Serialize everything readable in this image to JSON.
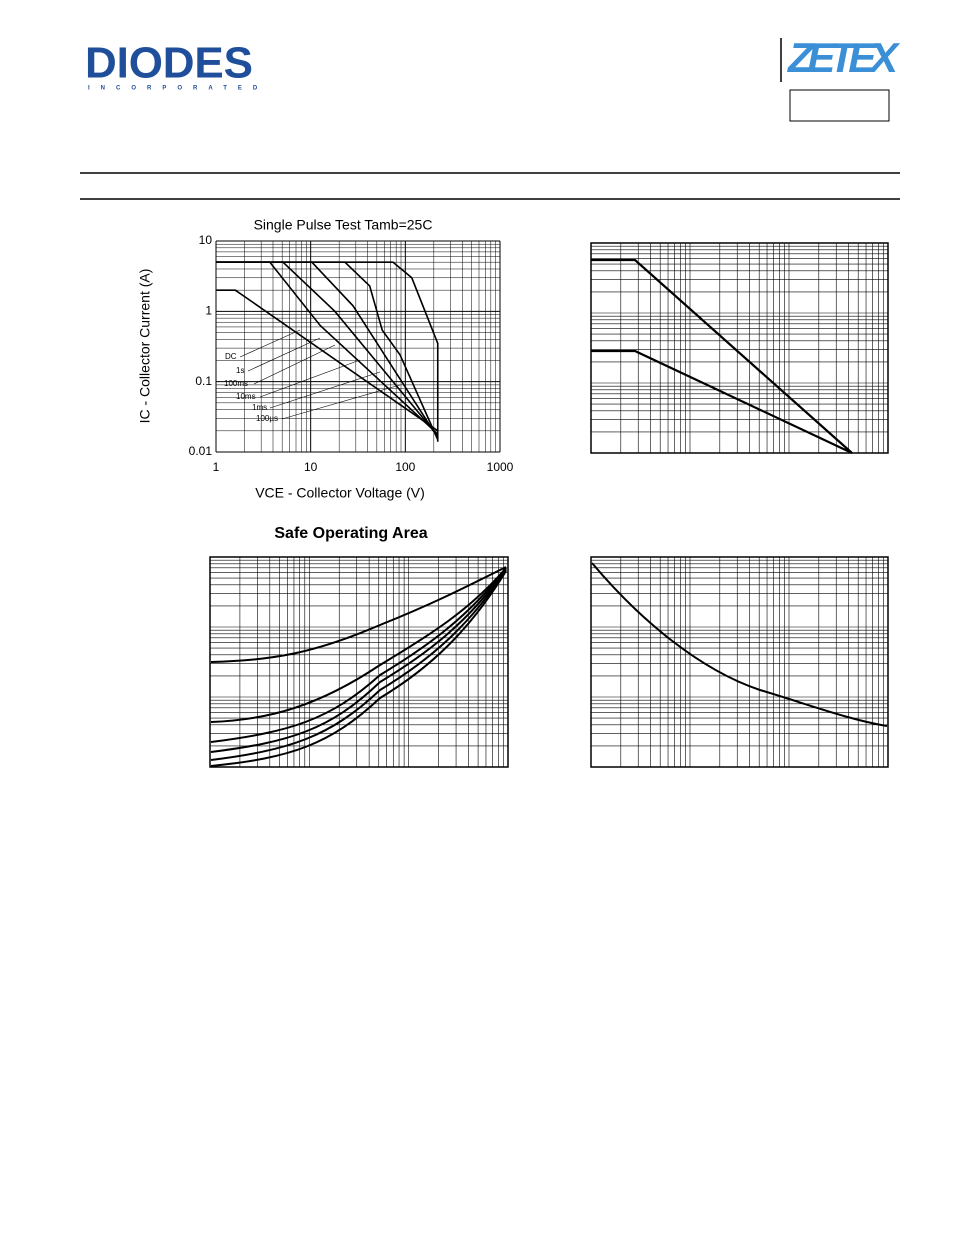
{
  "header": {
    "logo_left": "DIODES",
    "logo_left_sub": "INCORPORATED",
    "logo_right": "ZETEX"
  },
  "chart_data": {
    "type": "line",
    "title": "Single Pulse Test Tamb=25C",
    "caption": "Safe Operating Area",
    "xlabel": "VCE - Collector Voltage (V)",
    "ylabel": "IC - Collector Current (A)",
    "xscale": "log",
    "yscale": "log",
    "grid": true,
    "xlim": [
      1,
      1000
    ],
    "ylim": [
      0.01,
      10
    ],
    "xticks": [
      1,
      10,
      100,
      1000
    ],
    "yticks": [
      0.01,
      0.1,
      1,
      10
    ],
    "series": [
      {
        "name": "DC",
        "color": "#000000",
        "x": [
          1,
          1.6,
          220
        ],
        "values": [
          2,
          2,
          0.02
        ]
      },
      {
        "name": "1s",
        "color": "#000000",
        "x": [
          1,
          3.7,
          12.6,
          220
        ],
        "values": [
          5,
          5,
          0.63,
          0.018
        ]
      },
      {
        "name": "100ms",
        "color": "#000000",
        "x": [
          1,
          5.1,
          18,
          220
        ],
        "values": [
          5,
          5,
          1,
          0.017
        ]
      },
      {
        "name": "10ms",
        "color": "#000000",
        "x": [
          1,
          10.3,
          28,
          220
        ],
        "values": [
          5,
          5,
          1.2,
          0.016
        ]
      },
      {
        "name": "1ms",
        "color": "#000000",
        "x": [
          1,
          23,
          42,
          57,
          88,
          220
        ],
        "values": [
          5,
          5,
          2.3,
          0.54,
          0.24,
          0.015
        ]
      },
      {
        "name": "100µs",
        "color": "#000000",
        "x": [
          1,
          74,
          117,
          220,
          220
        ],
        "values": [
          5,
          5,
          3,
          0.35,
          0.014
        ]
      }
    ]
  }
}
